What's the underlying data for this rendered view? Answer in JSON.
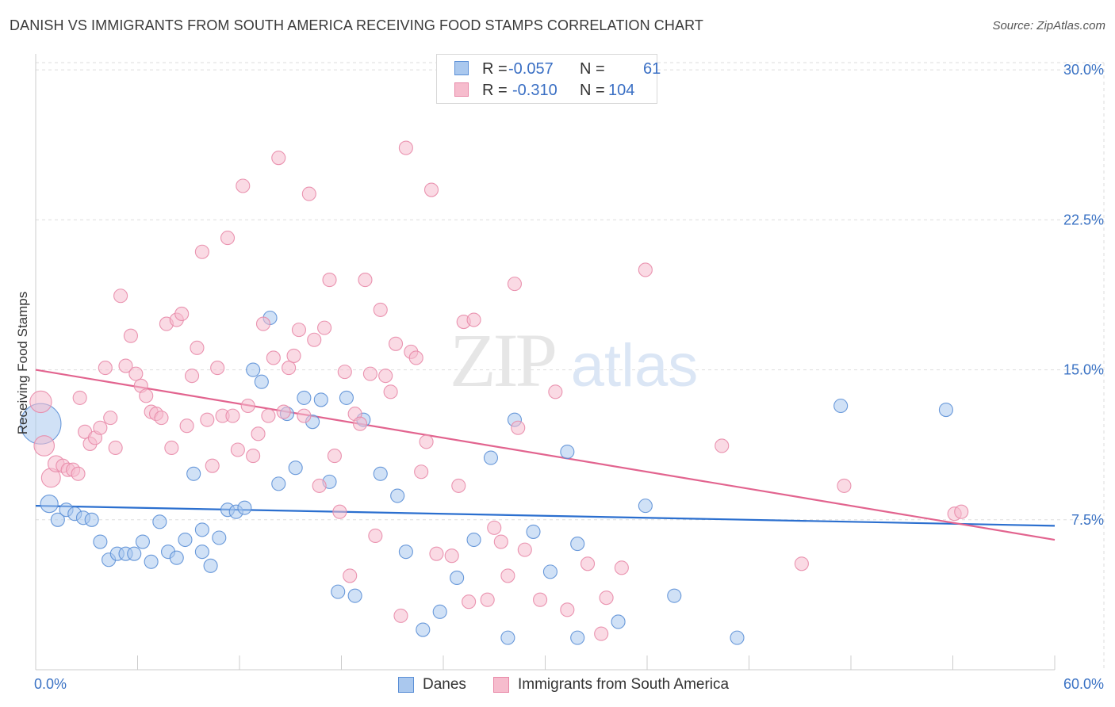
{
  "title": "DANISH VS IMMIGRANTS FROM SOUTH AMERICA RECEIVING FOOD STAMPS CORRELATION CHART",
  "source": "Source: ZipAtlas.com",
  "watermark": {
    "zip": "ZIP",
    "atlas": "atlas"
  },
  "colors": {
    "blue_fill": "#aac8ee",
    "blue_stroke": "#5b8fd6",
    "blue_line": "#2b6fcf",
    "pink_fill": "#f6bccd",
    "pink_stroke": "#e889a8",
    "pink_line": "#e2648f",
    "axis_text": "#3a72c4",
    "grid": "#dedede"
  },
  "legend_top": {
    "rows": [
      {
        "series": "Danes",
        "r_label": "R =",
        "r_value": "-0.057",
        "n_label": "N =",
        "n_value": "61"
      },
      {
        "series": "Immigrants from South America",
        "r_label": "R =",
        "r_value": "-0.310",
        "n_label": "N =",
        "n_value": "104"
      }
    ]
  },
  "legend_bottom": [
    "Danes",
    "Immigrants from South America"
  ],
  "chart_data": {
    "type": "scatter",
    "title": "DANISH VS IMMIGRANTS FROM SOUTH AMERICA RECEIVING FOOD STAMPS CORRELATION CHART",
    "xlabel": "",
    "ylabel": "Receiving Food Stamps",
    "xlim": [
      0,
      60
    ],
    "ylim": [
      0,
      30.8
    ],
    "x_tick_labels": [
      "0.0%",
      "60.0%"
    ],
    "y_ticks": [
      7.5,
      15.0,
      22.5,
      30.0
    ],
    "y_tick_labels": [
      "7.5%",
      "15.0%",
      "22.5%",
      "30.0%"
    ],
    "grid": true,
    "series": [
      {
        "name": "Danes",
        "color": "#aac8ee",
        "trend": {
          "x": [
            0,
            60
          ],
          "y": [
            8.2,
            7.2
          ]
        },
        "points": [
          [
            0.3,
            12.3,
            3
          ],
          [
            0.8,
            8.3,
            1.3
          ],
          [
            1.3,
            7.5,
            1
          ],
          [
            1.8,
            8.0,
            1
          ],
          [
            2.3,
            7.8,
            1
          ],
          [
            2.8,
            7.6,
            1
          ],
          [
            3.3,
            7.5,
            1
          ],
          [
            3.8,
            6.4,
            1
          ],
          [
            4.3,
            5.5,
            1
          ],
          [
            4.8,
            5.8,
            1
          ],
          [
            5.3,
            5.8,
            1
          ],
          [
            5.8,
            5.8,
            1
          ],
          [
            6.3,
            6.4,
            1
          ],
          [
            6.8,
            5.4,
            1
          ],
          [
            7.3,
            7.4,
            1
          ],
          [
            7.8,
            5.9,
            1
          ],
          [
            8.3,
            5.6,
            1
          ],
          [
            8.8,
            6.5,
            1
          ],
          [
            9.3,
            9.8,
            1
          ],
          [
            9.8,
            7.0,
            1
          ],
          [
            10.3,
            5.2,
            1
          ],
          [
            10.8,
            6.6,
            1
          ],
          [
            11.3,
            8.0,
            1
          ],
          [
            11.8,
            7.9,
            1
          ],
          [
            12.3,
            8.1,
            1
          ],
          [
            12.8,
            15.0,
            1
          ],
          [
            13.3,
            14.4,
            1
          ],
          [
            13.8,
            17.6,
            1
          ],
          [
            14.3,
            9.3,
            1
          ],
          [
            14.8,
            12.8,
            1
          ],
          [
            15.3,
            10.1,
            1
          ],
          [
            15.8,
            13.6,
            1
          ],
          [
            16.3,
            12.4,
            1
          ],
          [
            16.8,
            13.5,
            1
          ],
          [
            17.3,
            9.4,
            1
          ],
          [
            17.8,
            3.9,
            1
          ],
          [
            18.3,
            13.6,
            1
          ],
          [
            18.8,
            3.7,
            1
          ],
          [
            19.3,
            12.5,
            1
          ],
          [
            20.3,
            9.8,
            1
          ],
          [
            21.3,
            8.7,
            1
          ],
          [
            21.8,
            5.9,
            1
          ],
          [
            22.8,
            2.0,
            1
          ],
          [
            23.8,
            2.9,
            1
          ],
          [
            24.8,
            4.6,
            1
          ],
          [
            25.8,
            6.5,
            1
          ],
          [
            26.8,
            10.6,
            1
          ],
          [
            27.8,
            1.6,
            1
          ],
          [
            28.2,
            12.5,
            1
          ],
          [
            29.3,
            6.9,
            1
          ],
          [
            30.3,
            4.9,
            1
          ],
          [
            31.3,
            10.9,
            1
          ],
          [
            31.9,
            6.3,
            1
          ],
          [
            31.9,
            1.6,
            1
          ],
          [
            34.3,
            2.4,
            1
          ],
          [
            35.9,
            8.2,
            1
          ],
          [
            37.6,
            3.7,
            1
          ],
          [
            41.3,
            1.6,
            1
          ],
          [
            47.4,
            13.2,
            1
          ],
          [
            53.6,
            13.0,
            1
          ],
          [
            9.8,
            5.9,
            1
          ]
        ]
      },
      {
        "name": "Immigrants from South America",
        "color": "#f6bccd",
        "trend": {
          "x": [
            0,
            60
          ],
          "y": [
            15.0,
            6.5
          ]
        },
        "points": [
          [
            0.3,
            13.4,
            1.6
          ],
          [
            0.5,
            11.2,
            1.5
          ],
          [
            0.9,
            9.6,
            1.4
          ],
          [
            1.2,
            10.3,
            1.2
          ],
          [
            1.6,
            10.2,
            1
          ],
          [
            1.9,
            10.0,
            1
          ],
          [
            2.2,
            10.0,
            1
          ],
          [
            2.5,
            9.8,
            1
          ],
          [
            2.6,
            13.6,
            1
          ],
          [
            2.9,
            11.9,
            1
          ],
          [
            3.2,
            11.3,
            1
          ],
          [
            3.5,
            11.6,
            1
          ],
          [
            3.8,
            12.1,
            1
          ],
          [
            4.1,
            15.1,
            1
          ],
          [
            4.4,
            12.6,
            1
          ],
          [
            4.7,
            11.1,
            1
          ],
          [
            5.0,
            18.7,
            1
          ],
          [
            5.3,
            15.2,
            1
          ],
          [
            5.6,
            16.7,
            1
          ],
          [
            5.9,
            14.8,
            1
          ],
          [
            6.2,
            14.2,
            1
          ],
          [
            6.5,
            13.7,
            1
          ],
          [
            6.8,
            12.9,
            1
          ],
          [
            7.1,
            12.8,
            1
          ],
          [
            7.4,
            12.6,
            1
          ],
          [
            7.7,
            17.3,
            1
          ],
          [
            8.0,
            11.1,
            1
          ],
          [
            8.3,
            17.5,
            1
          ],
          [
            8.6,
            17.8,
            1
          ],
          [
            8.9,
            12.2,
            1
          ],
          [
            9.2,
            14.7,
            1
          ],
          [
            9.5,
            16.1,
            1
          ],
          [
            9.8,
            20.9,
            1
          ],
          [
            10.1,
            12.5,
            1
          ],
          [
            10.4,
            10.2,
            1
          ],
          [
            10.7,
            15.1,
            1
          ],
          [
            11.0,
            12.7,
            1
          ],
          [
            11.3,
            21.6,
            1
          ],
          [
            11.6,
            12.7,
            1
          ],
          [
            11.9,
            11.0,
            1
          ],
          [
            12.2,
            24.2,
            1
          ],
          [
            12.5,
            13.2,
            1
          ],
          [
            12.8,
            10.7,
            1
          ],
          [
            13.1,
            11.8,
            1
          ],
          [
            13.4,
            17.3,
            1
          ],
          [
            13.7,
            12.7,
            1
          ],
          [
            14.0,
            15.6,
            1
          ],
          [
            14.3,
            25.6,
            1
          ],
          [
            14.6,
            12.9,
            1
          ],
          [
            14.9,
            15.1,
            1
          ],
          [
            15.2,
            15.7,
            1
          ],
          [
            15.5,
            17.0,
            1
          ],
          [
            15.8,
            12.7,
            1
          ],
          [
            16.1,
            23.8,
            1
          ],
          [
            16.4,
            16.5,
            1
          ],
          [
            16.7,
            9.2,
            1
          ],
          [
            17.0,
            17.1,
            1
          ],
          [
            17.3,
            19.5,
            1
          ],
          [
            17.6,
            10.7,
            1
          ],
          [
            17.9,
            7.9,
            1
          ],
          [
            18.2,
            14.9,
            1
          ],
          [
            18.5,
            4.7,
            1
          ],
          [
            18.8,
            12.8,
            1
          ],
          [
            19.1,
            12.3,
            1
          ],
          [
            19.4,
            19.5,
            1
          ],
          [
            19.7,
            14.8,
            1
          ],
          [
            20.0,
            6.7,
            1
          ],
          [
            20.3,
            18.0,
            1
          ],
          [
            20.6,
            14.7,
            1
          ],
          [
            20.9,
            13.9,
            1
          ],
          [
            21.2,
            16.3,
            1
          ],
          [
            21.5,
            2.7,
            1
          ],
          [
            21.8,
            26.1,
            1
          ],
          [
            22.1,
            15.9,
            1
          ],
          [
            22.4,
            15.6,
            1
          ],
          [
            22.7,
            9.9,
            1
          ],
          [
            23.0,
            11.4,
            1
          ],
          [
            23.3,
            24.0,
            1
          ],
          [
            23.6,
            5.8,
            1
          ],
          [
            24.5,
            5.7,
            1
          ],
          [
            24.9,
            9.2,
            1
          ],
          [
            25.2,
            17.4,
            1
          ],
          [
            25.5,
            3.4,
            1
          ],
          [
            25.8,
            17.5,
            1
          ],
          [
            26.6,
            3.5,
            1
          ],
          [
            27.0,
            7.1,
            1
          ],
          [
            27.4,
            6.4,
            1
          ],
          [
            27.8,
            4.7,
            1
          ],
          [
            28.2,
            19.3,
            1
          ],
          [
            28.4,
            12.1,
            1
          ],
          [
            28.8,
            6.0,
            1
          ],
          [
            29.7,
            3.5,
            1
          ],
          [
            30.6,
            13.9,
            1
          ],
          [
            31.3,
            3.0,
            1
          ],
          [
            32.5,
            5.3,
            1
          ],
          [
            33.3,
            1.8,
            1
          ],
          [
            33.6,
            3.6,
            1
          ],
          [
            34.5,
            5.1,
            1
          ],
          [
            35.9,
            20.0,
            1
          ],
          [
            40.4,
            11.2,
            1
          ],
          [
            45.1,
            5.3,
            1
          ],
          [
            47.6,
            9.2,
            1
          ],
          [
            54.1,
            7.8,
            1
          ],
          [
            54.5,
            7.9,
            1
          ]
        ]
      }
    ]
  }
}
